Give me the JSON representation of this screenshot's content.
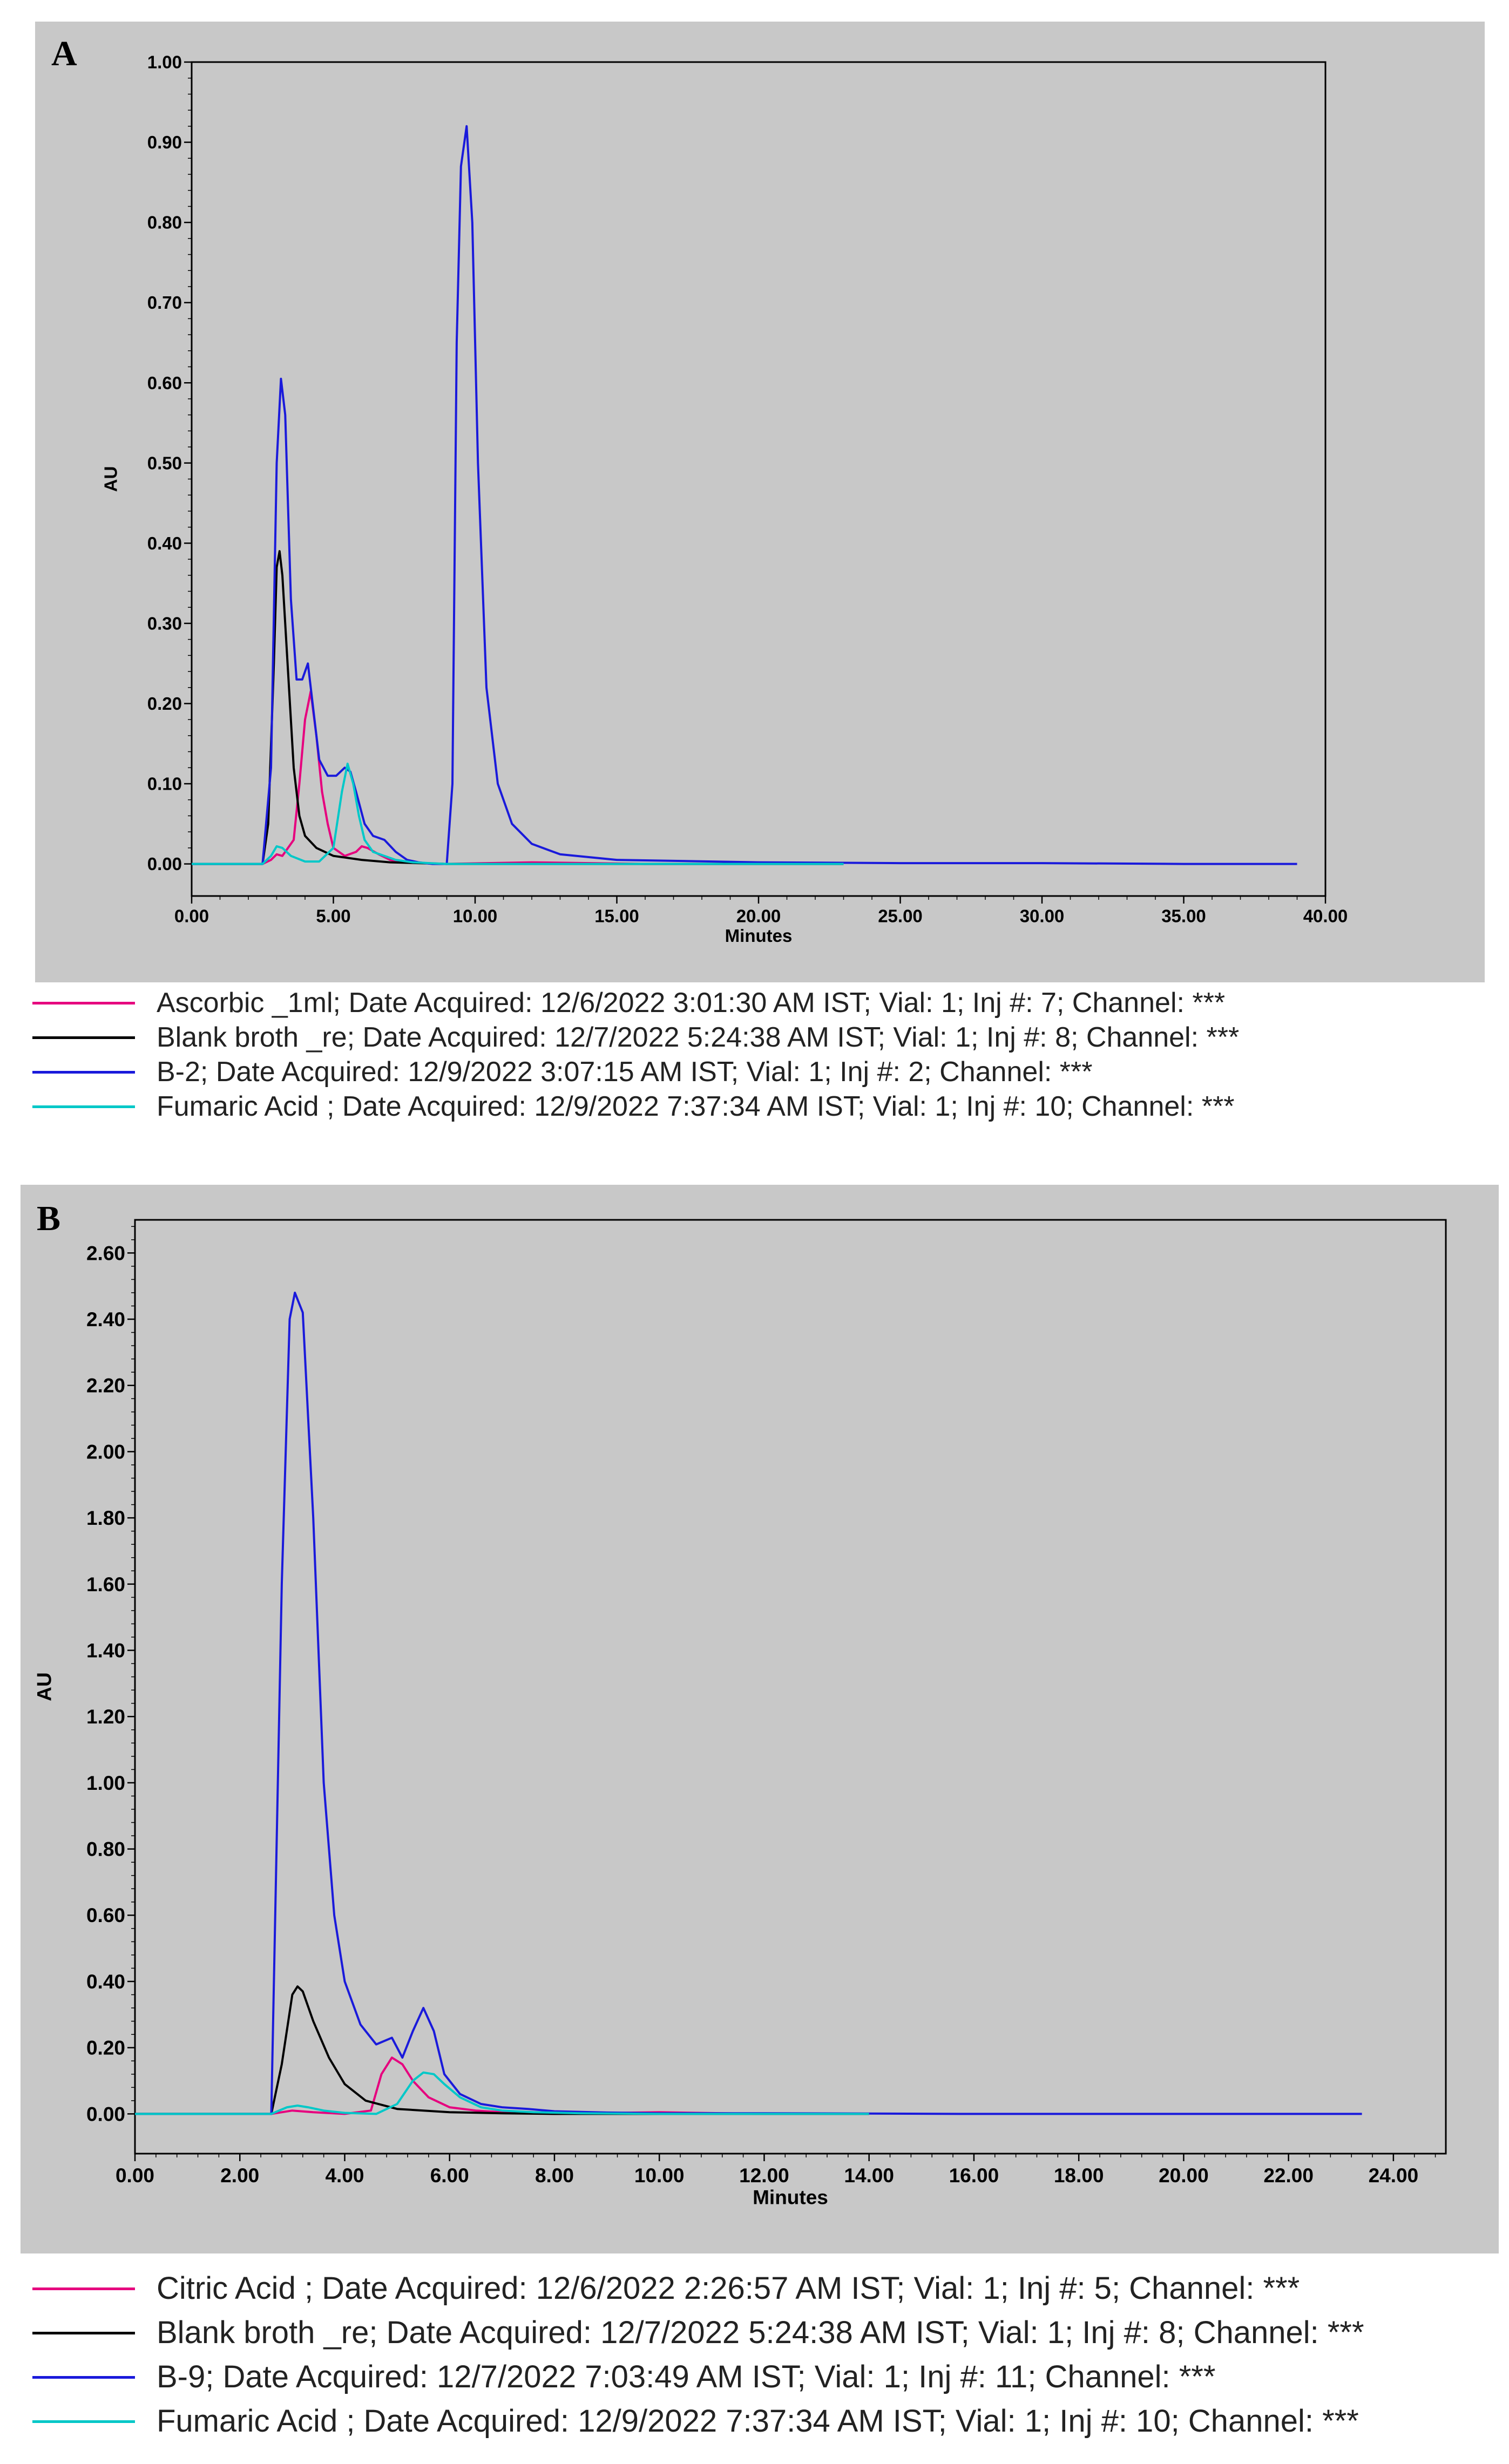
{
  "chart_data": [
    {
      "panel_label": "A",
      "type": "line",
      "xlabel": "Minutes",
      "ylabel": "AU",
      "xlim": [
        0,
        40
      ],
      "ylim": [
        -0.04,
        1.0
      ],
      "xticks": [
        "0.00",
        "5.00",
        "10.00",
        "15.00",
        "20.00",
        "25.00",
        "30.00",
        "35.00",
        "40.00"
      ],
      "yticks": [
        "0.00",
        "0.10",
        "0.20",
        "0.30",
        "0.40",
        "0.50",
        "0.60",
        "0.70",
        "0.80",
        "0.90",
        "1.00"
      ],
      "series": [
        {
          "color": "#e6007e",
          "legend": "Ascorbic  _1ml;   Date Acquired: 12/6/2022 3:01:30 AM IST;   Vial: 1;   Inj #: 7;   Channel: ***",
          "x": [
            0,
            2.5,
            2.8,
            3.0,
            3.2,
            3.6,
            3.8,
            4.0,
            4.2,
            4.4,
            4.6,
            4.8,
            5.0,
            5.4,
            5.8,
            6.0,
            6.2,
            6.6,
            7.0,
            7.5,
            9,
            12,
            16,
            20,
            23
          ],
          "y": [
            0,
            0,
            0.005,
            0.012,
            0.01,
            0.03,
            0.1,
            0.18,
            0.215,
            0.16,
            0.09,
            0.05,
            0.02,
            0.01,
            0.015,
            0.022,
            0.02,
            0.012,
            0.005,
            0.002,
            0,
            0.002,
            0,
            0,
            0
          ]
        },
        {
          "color": "#000000",
          "legend": "Blank broth _re;   Date Acquired: 12/7/2022 5:24:38 AM IST;   Vial: 1;   Inj #: 8;   Channel: ***",
          "x": [
            0,
            2.5,
            2.7,
            2.9,
            3.0,
            3.1,
            3.2,
            3.4,
            3.6,
            3.8,
            4.0,
            4.4,
            5.0,
            6.0,
            7.0,
            9,
            12,
            16,
            20,
            23
          ],
          "y": [
            0,
            0,
            0.05,
            0.25,
            0.37,
            0.39,
            0.36,
            0.24,
            0.12,
            0.06,
            0.035,
            0.02,
            0.01,
            0.005,
            0.002,
            0,
            0,
            0,
            0,
            0
          ]
        },
        {
          "color": "#1a1adb",
          "legend": "B-2;   Date Acquired: 12/9/2022 3:07:15 AM IST;   Vial: 1;   Inj #: 2;   Channel: ***",
          "x": [
            0,
            2.5,
            2.8,
            3.0,
            3.15,
            3.3,
            3.5,
            3.7,
            3.9,
            4.1,
            4.3,
            4.5,
            4.8,
            5.1,
            5.4,
            5.6,
            5.8,
            6.1,
            6.4,
            6.8,
            7.2,
            7.6,
            8.0,
            8.5,
            9.0,
            9.2,
            9.35,
            9.5,
            9.7,
            9.9,
            10.1,
            10.4,
            10.8,
            11.3,
            12,
            13,
            15,
            20,
            25,
            30,
            35,
            39
          ],
          "y": [
            0,
            0,
            0.12,
            0.5,
            0.605,
            0.56,
            0.33,
            0.23,
            0.23,
            0.25,
            0.19,
            0.13,
            0.11,
            0.11,
            0.12,
            0.115,
            0.09,
            0.05,
            0.035,
            0.03,
            0.015,
            0.005,
            0.002,
            0,
            0,
            0.1,
            0.65,
            0.87,
            0.92,
            0.8,
            0.5,
            0.22,
            0.1,
            0.05,
            0.025,
            0.012,
            0.005,
            0.002,
            0.001,
            0.001,
            0,
            0
          ]
        },
        {
          "color": "#00c8c8",
          "legend": "Fumaric Acid ;   Date Acquired: 12/9/2022 7:37:34 AM IST;   Vial: 1;   Inj #: 10;   Channel: ***",
          "x": [
            0,
            2.5,
            2.8,
            3.0,
            3.2,
            3.5,
            4.0,
            4.5,
            5.0,
            5.3,
            5.5,
            5.7,
            5.9,
            6.1,
            6.4,
            6.8,
            7.2,
            7.8,
            9,
            12,
            16,
            20,
            23
          ],
          "y": [
            0,
            0,
            0.01,
            0.022,
            0.02,
            0.01,
            0.003,
            0.003,
            0.02,
            0.09,
            0.125,
            0.1,
            0.06,
            0.03,
            0.015,
            0.01,
            0.005,
            0.002,
            0,
            0,
            0,
            0,
            0
          ]
        }
      ]
    },
    {
      "panel_label": "B",
      "type": "line",
      "xlabel": "Minutes",
      "ylabel": "AU",
      "xlim": [
        0,
        25
      ],
      "ylim": [
        -0.12,
        2.7
      ],
      "xticks": [
        "0.00",
        "2.00",
        "4.00",
        "6.00",
        "8.00",
        "10.00",
        "12.00",
        "14.00",
        "16.00",
        "18.00",
        "20.00",
        "22.00",
        "24.00"
      ],
      "yticks": [
        "0.00",
        "0.20",
        "0.40",
        "0.60",
        "0.80",
        "1.00",
        "1.20",
        "1.40",
        "1.60",
        "1.80",
        "2.00",
        "2.20",
        "2.40",
        "2.60"
      ],
      "series": [
        {
          "color": "#e6007e",
          "legend": "Citric Acid ;   Date Acquired: 12/6/2022 2:26:57 AM IST;   Vial: 1;   Inj #: 5;   Channel: ***",
          "x": [
            0,
            2.6,
            3.0,
            3.4,
            4.0,
            4.5,
            4.7,
            4.9,
            5.1,
            5.3,
            5.6,
            6.0,
            6.5,
            7.0,
            8,
            10,
            12,
            14
          ],
          "y": [
            0,
            0,
            0.01,
            0.005,
            0,
            0.01,
            0.12,
            0.17,
            0.15,
            0.1,
            0.05,
            0.02,
            0.01,
            0.005,
            0,
            0.005,
            0,
            0
          ]
        },
        {
          "color": "#000000",
          "legend": "Blank broth _re;   Date Acquired: 12/7/2022 5:24:38 AM IST;   Vial: 1;   Inj #: 8;   Channel: ***",
          "x": [
            0,
            2.6,
            2.8,
            3.0,
            3.1,
            3.2,
            3.4,
            3.7,
            4.0,
            4.4,
            5.0,
            6.0,
            7.0,
            8,
            10,
            12,
            14
          ],
          "y": [
            0,
            0,
            0.15,
            0.36,
            0.385,
            0.37,
            0.28,
            0.17,
            0.09,
            0.04,
            0.015,
            0.005,
            0.002,
            0,
            0,
            0,
            0
          ]
        },
        {
          "color": "#1a1adb",
          "legend": "B-9;   Date Acquired: 12/7/2022 7:03:49 AM IST;   Vial: 1;   Inj #: 11;   Channel: ***",
          "x": [
            0,
            2.6,
            2.8,
            2.95,
            3.05,
            3.2,
            3.4,
            3.6,
            3.8,
            4.0,
            4.3,
            4.6,
            4.9,
            5.1,
            5.3,
            5.5,
            5.7,
            5.9,
            6.2,
            6.6,
            7.0,
            7.5,
            8,
            9,
            10,
            12,
            14,
            16,
            20,
            23.4
          ],
          "y": [
            0,
            0,
            1.6,
            2.4,
            2.48,
            2.42,
            1.8,
            1.0,
            0.6,
            0.4,
            0.27,
            0.21,
            0.23,
            0.17,
            0.25,
            0.32,
            0.25,
            0.12,
            0.06,
            0.03,
            0.02,
            0.015,
            0.008,
            0.004,
            0.002,
            0.002,
            0.001,
            0,
            0,
            0
          ]
        },
        {
          "color": "#00c8c8",
          "legend": "Fumaric Acid ;   Date Acquired: 12/9/2022 7:37:34 AM IST;   Vial: 1;   Inj #: 10;   Channel: ***",
          "x": [
            0,
            2.6,
            2.9,
            3.1,
            3.3,
            3.6,
            4.0,
            4.6,
            5.0,
            5.3,
            5.5,
            5.7,
            5.9,
            6.2,
            6.6,
            7.0,
            7.6,
            8.5,
            10,
            12,
            14
          ],
          "y": [
            0,
            0,
            0.02,
            0.025,
            0.02,
            0.01,
            0.003,
            0,
            0.03,
            0.1,
            0.125,
            0.12,
            0.09,
            0.05,
            0.02,
            0.01,
            0.005,
            0.002,
            0,
            0,
            0
          ]
        }
      ]
    }
  ]
}
